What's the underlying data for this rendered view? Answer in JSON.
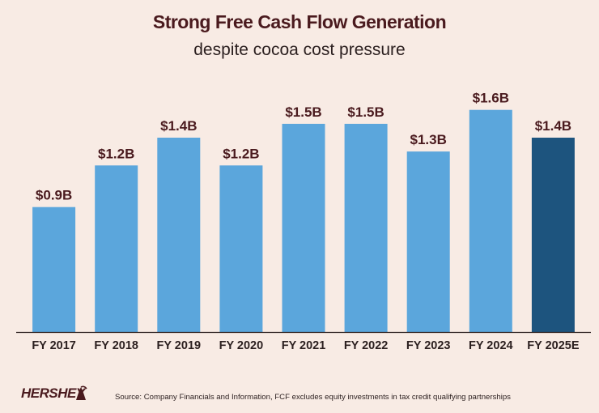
{
  "chart_data": {
    "type": "bar",
    "title": "Strong Free Cash Flow Generation",
    "subtitle": "despite cocoa cost pressure",
    "categories": [
      "FY 2017",
      "FY 2018",
      "FY 2019",
      "FY 2020",
      "FY 2021",
      "FY 2022",
      "FY 2023",
      "FY 2024",
      "FY 2025E"
    ],
    "values": [
      0.9,
      1.2,
      1.4,
      1.2,
      1.5,
      1.5,
      1.3,
      1.6,
      1.4
    ],
    "labels": [
      "$0.9B",
      "$1.2B",
      "$1.4B",
      "$1.2B",
      "$1.5B",
      "$1.5B",
      "$1.3B",
      "$1.6B",
      "$1.4B"
    ],
    "unit": "$B",
    "ylim": [
      0,
      1.75
    ],
    "xlabel": "",
    "ylabel": "",
    "grid": false,
    "colors": {
      "actual": "#5ba6dc",
      "estimate": "#1d547e",
      "label": "#4a1a1e",
      "axis": "#2b1f1f"
    }
  },
  "footer": {
    "logo_text": "HERSHEY",
    "source": "Source: Company Financials and Information, FCF excludes equity investments in tax credit qualifying partnerships"
  }
}
